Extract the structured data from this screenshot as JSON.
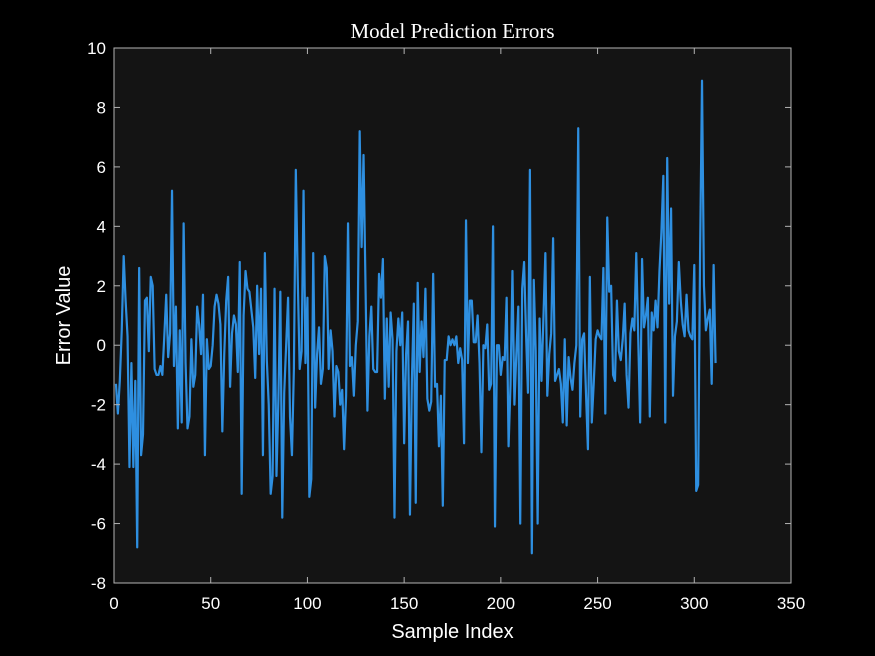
{
  "chart_data": {
    "type": "line",
    "title": "Model Prediction Errors",
    "xlabel": "Sample Index",
    "ylabel": "Error Value",
    "xlim": [
      0,
      350
    ],
    "ylim": [
      -8,
      10
    ],
    "xticks": [
      0,
      50,
      100,
      150,
      200,
      250,
      300,
      350
    ],
    "yticks": [
      -8,
      -6,
      -4,
      -2,
      0,
      2,
      4,
      6,
      8,
      10
    ],
    "grid": false,
    "series": [
      {
        "color": "#2e8fe0",
        "x_start": 1,
        "x_step": 1,
        "values": [
          -1.3,
          -2.3,
          -1.2,
          0.5,
          3.0,
          1.5,
          0.3,
          -4.1,
          -0.6,
          -4.1,
          -1.2,
          -6.8,
          2.6,
          -3.7,
          -3.0,
          1.5,
          1.6,
          -0.2,
          2.3,
          2.0,
          -0.8,
          -1.0,
          -1.0,
          -0.7,
          -1.0,
          0.3,
          1.7,
          -0.4,
          0.4,
          5.2,
          -0.7,
          1.3,
          -2.8,
          0.5,
          -2.6,
          4.1,
          -0.6,
          -2.8,
          -2.4,
          0.2,
          -1.4,
          -1.0,
          1.3,
          0.7,
          -0.3,
          1.7,
          -3.7,
          0.2,
          -0.8,
          -0.7,
          0.0,
          1.3,
          1.7,
          1.4,
          0.7,
          -2.9,
          -0.3,
          1.5,
          2.3,
          -1.4,
          0.4,
          1.0,
          0.7,
          -0.9,
          2.8,
          -5.0,
          1.0,
          2.5,
          1.9,
          1.8,
          1.2,
          0.6,
          -1.1,
          2.0,
          -0.3,
          1.9,
          -3.7,
          3.1,
          -0.5,
          -2.0,
          -5.0,
          -4.4,
          1.9,
          -4.4,
          -1.8,
          1.8,
          -5.8,
          -1.6,
          0.0,
          1.6,
          -2.4,
          -3.7,
          -0.8,
          5.9,
          2.2,
          -0.8,
          -0.2,
          5.2,
          -0.6,
          1.6,
          -5.1,
          -4.5,
          3.1,
          -2.1,
          -0.3,
          0.6,
          -1.3,
          -0.8,
          3.0,
          2.6,
          -0.8,
          0.5,
          -0.2,
          -2.4,
          -0.7,
          -0.9,
          -2.0,
          -1.5,
          -3.5,
          -1.7,
          4.1,
          -0.7,
          -0.4,
          -1.7,
          0.0,
          0.8,
          7.2,
          3.3,
          6.4,
          2.1,
          -2.2,
          0.3,
          1.3,
          -0.8,
          -0.9,
          -0.9,
          2.4,
          1.6,
          2.9,
          -1.8,
          0.9,
          -1.4,
          1.1,
          0.2,
          -5.8,
          -0.2,
          0.9,
          0.0,
          1.1,
          -3.3,
          -0.3,
          0.8,
          -5.7,
          -1.2,
          1.4,
          -5.3,
          2.1,
          -0.9,
          0.8,
          -0.4,
          1.9,
          -1.8,
          -2.2,
          -1.9,
          2.4,
          -1.4,
          -1.3,
          -3.4,
          -1.7,
          -5.4,
          -0.5,
          -0.5,
          0.3,
          0.0,
          0.2,
          0.0,
          0.3,
          -0.6,
          -0.1,
          -0.5,
          -3.3,
          4.2,
          -0.6,
          1.5,
          1.5,
          0.1,
          0.1,
          1.0,
          -0.6,
          -3.6,
          0.0,
          -0.1,
          0.7,
          -1.5,
          -1.3,
          4.0,
          -6.1,
          0.0,
          0.0,
          -1.0,
          -0.4,
          -0.5,
          1.6,
          -3.4,
          -1.3,
          2.5,
          -2.0,
          -0.3,
          1.3,
          -6.0,
          1.9,
          2.8,
          0.4,
          -1.6,
          5.9,
          -7.0,
          2.2,
          -0.2,
          -6.0,
          0.9,
          -1.2,
          0.9,
          3.1,
          -1.7,
          -0.3,
          0.4,
          3.6,
          -1.2,
          -1.0,
          -0.8,
          -1.3,
          -2.6,
          0.2,
          -2.7,
          -0.4,
          -1.1,
          -1.5,
          -0.6,
          0.0,
          7.3,
          -2.4,
          0.2,
          0.4,
          -1.6,
          -3.5,
          2.3,
          -2.6,
          -1.3,
          0.2,
          0.5,
          0.3,
          0.2,
          2.6,
          -2.3,
          4.3,
          1.8,
          2.0,
          -1.0,
          -1.2,
          1.5,
          -0.2,
          -0.5,
          0.2,
          1.4,
          -1.0,
          -2.1,
          0.4,
          0.9,
          0.5,
          3.1,
          0.3,
          -2.6,
          2.9,
          0.6,
          1.0,
          1.6,
          -2.4,
          1.1,
          0.5,
          1.5,
          0.6,
          2.5,
          3.8,
          5.7,
          -2.6,
          6.3,
          1.4,
          4.6,
          -1.7,
          0.3,
          0.8,
          2.8,
          1.5,
          0.7,
          0.3,
          1.7,
          0.5,
          0.3,
          0.2,
          2.7,
          -4.9,
          -4.7,
          3.1,
          8.9,
          2.0,
          0.5,
          0.9,
          1.2,
          -1.3,
          2.7,
          -0.6
        ]
      }
    ]
  }
}
